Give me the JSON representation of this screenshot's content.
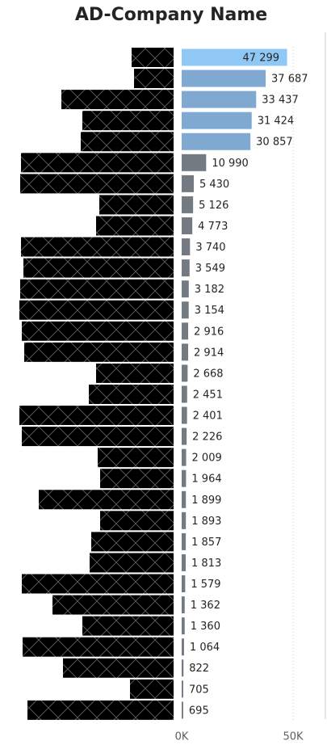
{
  "chart_data": {
    "type": "hbar",
    "title": "AD-Company Name",
    "categories": [
      null,
      null,
      null,
      null,
      null,
      null,
      null,
      null,
      null,
      null,
      null,
      null,
      null,
      null,
      null,
      null,
      null,
      null,
      null,
      null,
      null,
      null,
      null,
      null,
      null,
      null,
      null,
      null,
      null,
      null,
      null,
      null
    ],
    "values": [
      47299,
      37687,
      33437,
      31424,
      30857,
      10990,
      5430,
      5126,
      4773,
      3740,
      3549,
      3182,
      3154,
      2916,
      2914,
      2668,
      2451,
      2401,
      2226,
      2009,
      1964,
      1899,
      1893,
      1857,
      1813,
      1579,
      1362,
      1360,
      1064,
      822,
      705,
      695
    ],
    "value_labels": [
      "47 299",
      "37 687",
      "33 437",
      "31 424",
      "30 857",
      "10 990",
      "5 430",
      "5 126",
      "4 773",
      "3 740",
      "3 549",
      "3 182",
      "3 154",
      "2 916",
      "2 914",
      "2 668",
      "2 451",
      "2 401",
      "2 226",
      "2 009",
      "1 964",
      "1 899",
      "1 893",
      "1 857",
      "1 813",
      "1 579",
      "1 362",
      "1 360",
      "1 064",
      "822",
      "705",
      "695"
    ],
    "colors": [
      "#8fc8f4",
      "#7fa9d1",
      "#7fa9d1",
      "#7fa9d1",
      "#7fa9d1",
      "#737a82",
      "#737a82",
      "#737a82",
      "#737a82",
      "#737a82",
      "#737a82",
      "#737a82",
      "#737a82",
      "#737a82",
      "#737a82",
      "#737a82",
      "#737a82",
      "#737a82",
      "#737a82",
      "#737a82",
      "#737a82",
      "#737a82",
      "#737a82",
      "#737a82",
      "#737a82",
      "#737a82",
      "#737a82",
      "#737a82",
      "#737a82",
      "#737a82",
      "#737a82",
      "#737a82"
    ],
    "xlim": [
      0,
      65000
    ],
    "xticks": [
      {
        "value": 0,
        "label": "0K"
      },
      {
        "value": 50000,
        "label": "50K"
      }
    ],
    "grid": true
  }
}
